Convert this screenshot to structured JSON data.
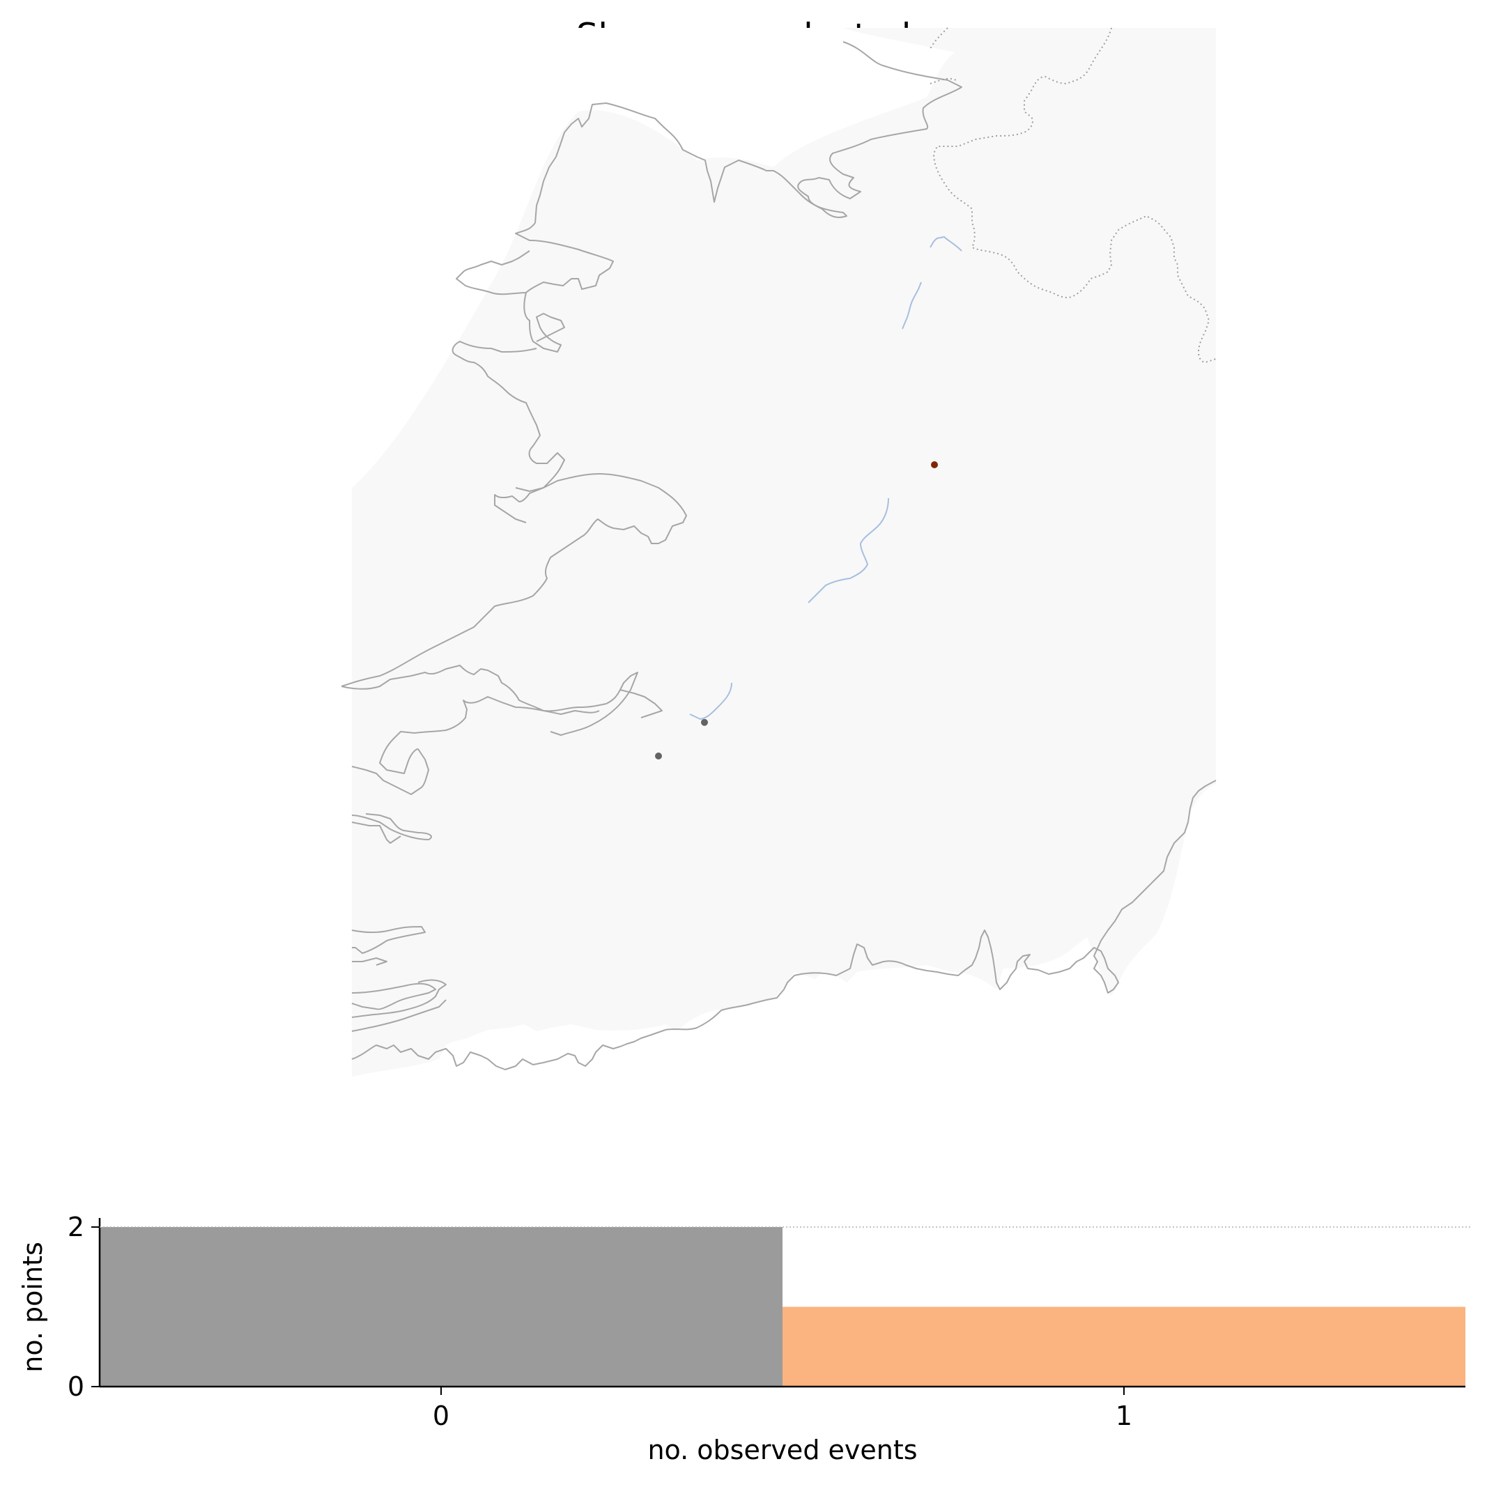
{
  "title": "Shannon - selected",
  "colors": {
    "land": "#f8f8f8",
    "coast": "#a6a6a6",
    "border": "#9e9e9e",
    "river": "#a7bfdf",
    "point_zero": "#636363",
    "point_one": "#7f2704",
    "bar_zero": "#9b9b9b",
    "bar_one": "#fbb47f",
    "axis": "#000000",
    "grid": "#b0b0b0"
  },
  "map": {
    "region": "Ireland (south-west)",
    "points": [
      {
        "id": "p1",
        "events": 0,
        "lon": -8.98,
        "lat": 52.68
      },
      {
        "id": "p2",
        "events": 0,
        "lon": -9.26,
        "lat": 52.56
      },
      {
        "id": "p3",
        "events": 1,
        "lon": -7.58,
        "lat": 53.6
      }
    ]
  },
  "chart_data": {
    "type": "bar",
    "categories": [
      "0",
      "1"
    ],
    "values": [
      2,
      1
    ],
    "bar_colors": [
      "#9b9b9b",
      "#fbb47f"
    ],
    "xlabel": "no. observed events",
    "ylabel": "no. points",
    "yticks": [
      "0",
      "2"
    ],
    "ylim": [
      0,
      2
    ],
    "grid": "dotted line at max value"
  }
}
